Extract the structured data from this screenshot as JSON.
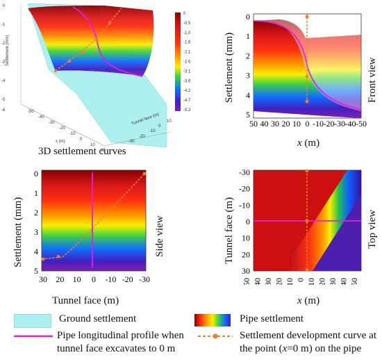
{
  "panels": {
    "p3d": {
      "caption": "3D settlement curves",
      "zlabel": "Settlement (mm)",
      "axis_x_label": "x (m)",
      "axis_y_label": "Tunnel face (m)",
      "colorbar_ticks": [
        "0",
        "-0.5",
        "-1.0",
        "-1.6",
        "-2.1",
        "-2.6",
        "-3.1",
        "-3.6",
        "-4.2",
        "-4.7",
        "-5.2"
      ]
    },
    "front": {
      "side_label": "Front view",
      "ylabel": "Settlement (mm)",
      "xlabel_var": "x",
      "xlabel_unit": " (m)",
      "yticks": [
        "0",
        "1",
        "2",
        "3",
        "4",
        "5"
      ],
      "xticks": [
        "50",
        "40",
        "30",
        "20",
        "10",
        "0",
        "-10",
        "-20",
        "-30",
        "-40",
        "-50"
      ]
    },
    "side": {
      "side_label": "Side view",
      "ylabel": "Settlement (mm)",
      "xlabel": "Tunnel face (m)",
      "yticks": [
        "0",
        "1",
        "2",
        "3",
        "4",
        "5"
      ],
      "xticks": [
        "30",
        "20",
        "10",
        "0",
        "-10",
        "-20",
        "-30"
      ]
    },
    "top": {
      "side_label": "Top view",
      "ylabel": "Tunnel face (m)",
      "xlabel_var": "x",
      "xlabel_unit": " (m)",
      "yticks": [
        "-30",
        "-20",
        "-10",
        "0",
        "10",
        "20",
        "30"
      ],
      "xticks": [
        "50",
        "40",
        "30",
        "20",
        "10",
        "0",
        "-10",
        "-20",
        "-30",
        "-40",
        "-50"
      ]
    }
  },
  "legend": {
    "ground": "Ground settlement",
    "pipe": "Pipe settlement",
    "profile_line1": "Pipe longitudinal profile when",
    "profile_line2": "tunnel face excavates to 0 m",
    "curve_line1": "Settlement development curve at",
    "curve_line2_pre": "the point (",
    "curve_line2_var": "x",
    "curve_line2_post": "=0 m) on the pipe"
  },
  "colors": {
    "profile": "#e020e0",
    "curve": "#f08030",
    "ground": "#aef0f0"
  }
}
